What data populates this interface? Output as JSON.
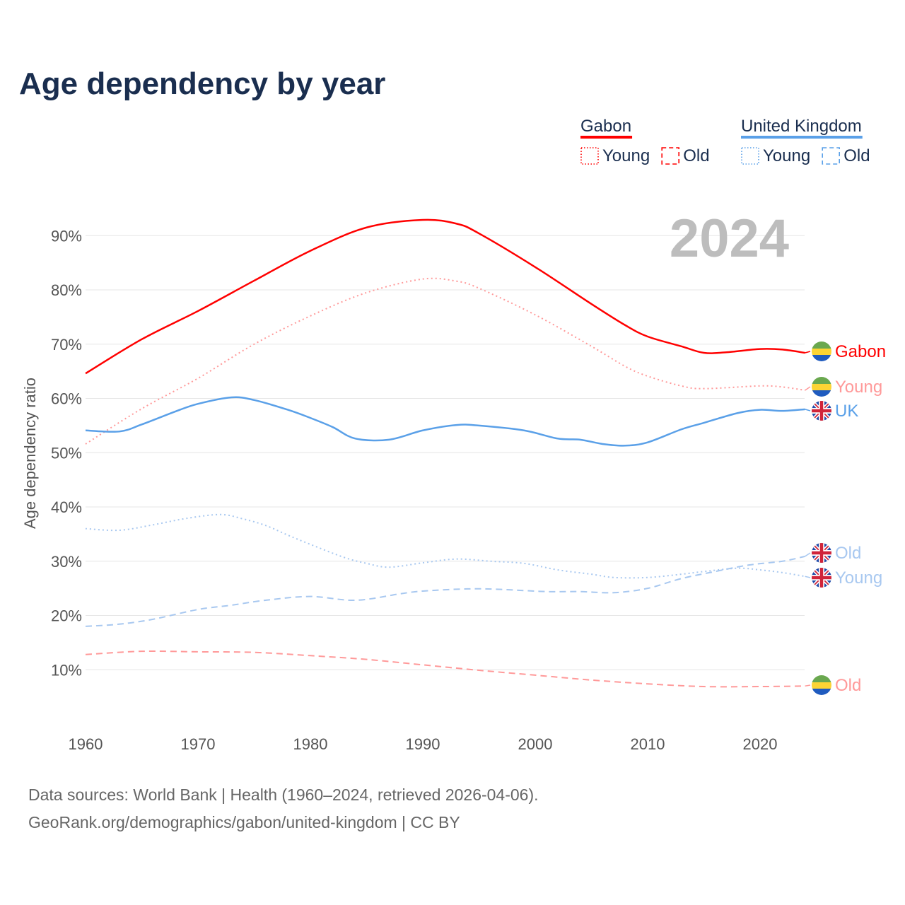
{
  "title": "Age dependency by year",
  "year_display": "2024",
  "footer": {
    "line1": "Data sources: World Bank | Health (1960–2024, retrieved 2026-04-06).",
    "line2": "GeoRank.org/demographics/gabon/united-kingdom | CC BY"
  },
  "legend": {
    "groups": [
      {
        "name": "Gabon",
        "color": "#ff0000",
        "items": [
          {
            "label": "Young",
            "style": "dotted"
          },
          {
            "label": "Old",
            "style": "dashed"
          }
        ]
      },
      {
        "name": "United Kingdom",
        "color": "#5aa0e8",
        "items": [
          {
            "label": "Young",
            "style": "dotted"
          },
          {
            "label": "Old",
            "style": "dashed"
          }
        ]
      }
    ]
  },
  "chart_data": {
    "type": "line",
    "title": "Age dependency by year",
    "xlabel": "",
    "ylabel": "Age dependency ratio",
    "xlim": [
      1960,
      2024
    ],
    "ylim": [
      0,
      95
    ],
    "xticks": [
      1960,
      1970,
      1980,
      1990,
      2000,
      2010,
      2020
    ],
    "yticks": [
      10,
      20,
      30,
      40,
      50,
      60,
      70,
      80,
      90
    ],
    "ytick_labels": [
      "10%",
      "20%",
      "30%",
      "40%",
      "50%",
      "60%",
      "70%",
      "80%",
      "90%"
    ],
    "grid": true,
    "legend_position": "top-right",
    "series": [
      {
        "name": "Gabon",
        "end_label": "Gabon",
        "flag": "gabon",
        "color": "#ff0000",
        "style": "solid",
        "points": [
          [
            1960,
            64.6
          ],
          [
            1965,
            70.9
          ],
          [
            1970,
            76.1
          ],
          [
            1975,
            81.7
          ],
          [
            1980,
            87.2
          ],
          [
            1985,
            91.5
          ],
          [
            1990,
            92.9
          ],
          [
            1993,
            92.2
          ],
          [
            1995,
            90.4
          ],
          [
            2000,
            84.2
          ],
          [
            2005,
            77.4
          ],
          [
            2008,
            73.5
          ],
          [
            2010,
            71.4
          ],
          [
            2013,
            69.6
          ],
          [
            2015,
            68.4
          ],
          [
            2017,
            68.5
          ],
          [
            2020,
            69.1
          ],
          [
            2022,
            69.0
          ],
          [
            2024,
            68.4
          ]
        ]
      },
      {
        "name": "Gabon Young",
        "end_label": "Young",
        "flag": "gabon",
        "color": "#ff9999",
        "style": "dotted",
        "points": [
          [
            1960,
            51.6
          ],
          [
            1965,
            58.1
          ],
          [
            1970,
            63.7
          ],
          [
            1975,
            70.0
          ],
          [
            1980,
            75.2
          ],
          [
            1985,
            79.5
          ],
          [
            1990,
            82.0
          ],
          [
            1993,
            81.6
          ],
          [
            1995,
            80.3
          ],
          [
            2000,
            75.4
          ],
          [
            2005,
            69.6
          ],
          [
            2008,
            65.9
          ],
          [
            2010,
            64.1
          ],
          [
            2013,
            62.3
          ],
          [
            2015,
            61.8
          ],
          [
            2020,
            62.3
          ],
          [
            2022,
            62.1
          ],
          [
            2024,
            61.5
          ]
        ]
      },
      {
        "name": "United Kingdom",
        "end_label": "UK",
        "flag": "uk",
        "color": "#5aa0e8",
        "style": "solid",
        "points": [
          [
            1960,
            54.1
          ],
          [
            1963,
            53.9
          ],
          [
            1965,
            55.2
          ],
          [
            1968,
            57.6
          ],
          [
            1970,
            59.0
          ],
          [
            1973,
            60.2
          ],
          [
            1975,
            59.7
          ],
          [
            1978,
            57.9
          ],
          [
            1980,
            56.4
          ],
          [
            1982,
            54.7
          ],
          [
            1984,
            52.6
          ],
          [
            1987,
            52.4
          ],
          [
            1990,
            54.1
          ],
          [
            1993,
            55.1
          ],
          [
            1995,
            55.0
          ],
          [
            1999,
            54.1
          ],
          [
            2002,
            52.6
          ],
          [
            2004,
            52.4
          ],
          [
            2006,
            51.6
          ],
          [
            2008,
            51.3
          ],
          [
            2010,
            51.9
          ],
          [
            2013,
            54.3
          ],
          [
            2015,
            55.5
          ],
          [
            2018,
            57.3
          ],
          [
            2020,
            57.9
          ],
          [
            2022,
            57.7
          ],
          [
            2024,
            58.0
          ]
        ]
      },
      {
        "name": "United Kingdom Old",
        "end_label": "Old",
        "flag": "uk",
        "color": "#a8c8f0",
        "style": "dashed",
        "points": [
          [
            1960,
            18.0
          ],
          [
            1963,
            18.4
          ],
          [
            1966,
            19.3
          ],
          [
            1970,
            21.1
          ],
          [
            1973,
            21.9
          ],
          [
            1976,
            22.8
          ],
          [
            1980,
            23.5
          ],
          [
            1984,
            22.8
          ],
          [
            1988,
            24.0
          ],
          [
            1990,
            24.5
          ],
          [
            1994,
            24.9
          ],
          [
            1997,
            24.8
          ],
          [
            2001,
            24.4
          ],
          [
            2004,
            24.4
          ],
          [
            2007,
            24.2
          ],
          [
            2010,
            25.0
          ],
          [
            2013,
            26.8
          ],
          [
            2016,
            28.1
          ],
          [
            2019,
            29.3
          ],
          [
            2022,
            30.0
          ],
          [
            2024,
            30.9
          ]
        ]
      },
      {
        "name": "United Kingdom Young",
        "end_label": "Young",
        "flag": "uk",
        "color": "#a8c8f0",
        "style": "dotted",
        "points": [
          [
            1960,
            36.0
          ],
          [
            1963,
            35.7
          ],
          [
            1966,
            36.7
          ],
          [
            1969,
            37.9
          ],
          [
            1972,
            38.6
          ],
          [
            1974,
            37.8
          ],
          [
            1976,
            36.6
          ],
          [
            1978,
            34.8
          ],
          [
            1980,
            33.1
          ],
          [
            1983,
            30.7
          ],
          [
            1985,
            29.6
          ],
          [
            1987,
            28.9
          ],
          [
            1990,
            29.7
          ],
          [
            1993,
            30.4
          ],
          [
            1996,
            30.0
          ],
          [
            1999,
            29.6
          ],
          [
            2002,
            28.4
          ],
          [
            2005,
            27.6
          ],
          [
            2007,
            27.0
          ],
          [
            2010,
            27.0
          ],
          [
            2013,
            27.6
          ],
          [
            2015,
            28.1
          ],
          [
            2018,
            28.7
          ],
          [
            2020,
            28.4
          ],
          [
            2022,
            27.9
          ],
          [
            2024,
            27.2
          ]
        ]
      },
      {
        "name": "Gabon Old",
        "end_label": "Old",
        "flag": "gabon",
        "color": "#ff9999",
        "style": "dashed",
        "points": [
          [
            1960,
            12.8
          ],
          [
            1965,
            13.4
          ],
          [
            1970,
            13.3
          ],
          [
            1975,
            13.2
          ],
          [
            1980,
            12.6
          ],
          [
            1985,
            11.9
          ],
          [
            1990,
            10.9
          ],
          [
            1995,
            9.9
          ],
          [
            2000,
            9.0
          ],
          [
            2005,
            8.1
          ],
          [
            2010,
            7.4
          ],
          [
            2015,
            6.9
          ],
          [
            2020,
            6.9
          ],
          [
            2024,
            7.0
          ]
        ]
      }
    ]
  }
}
